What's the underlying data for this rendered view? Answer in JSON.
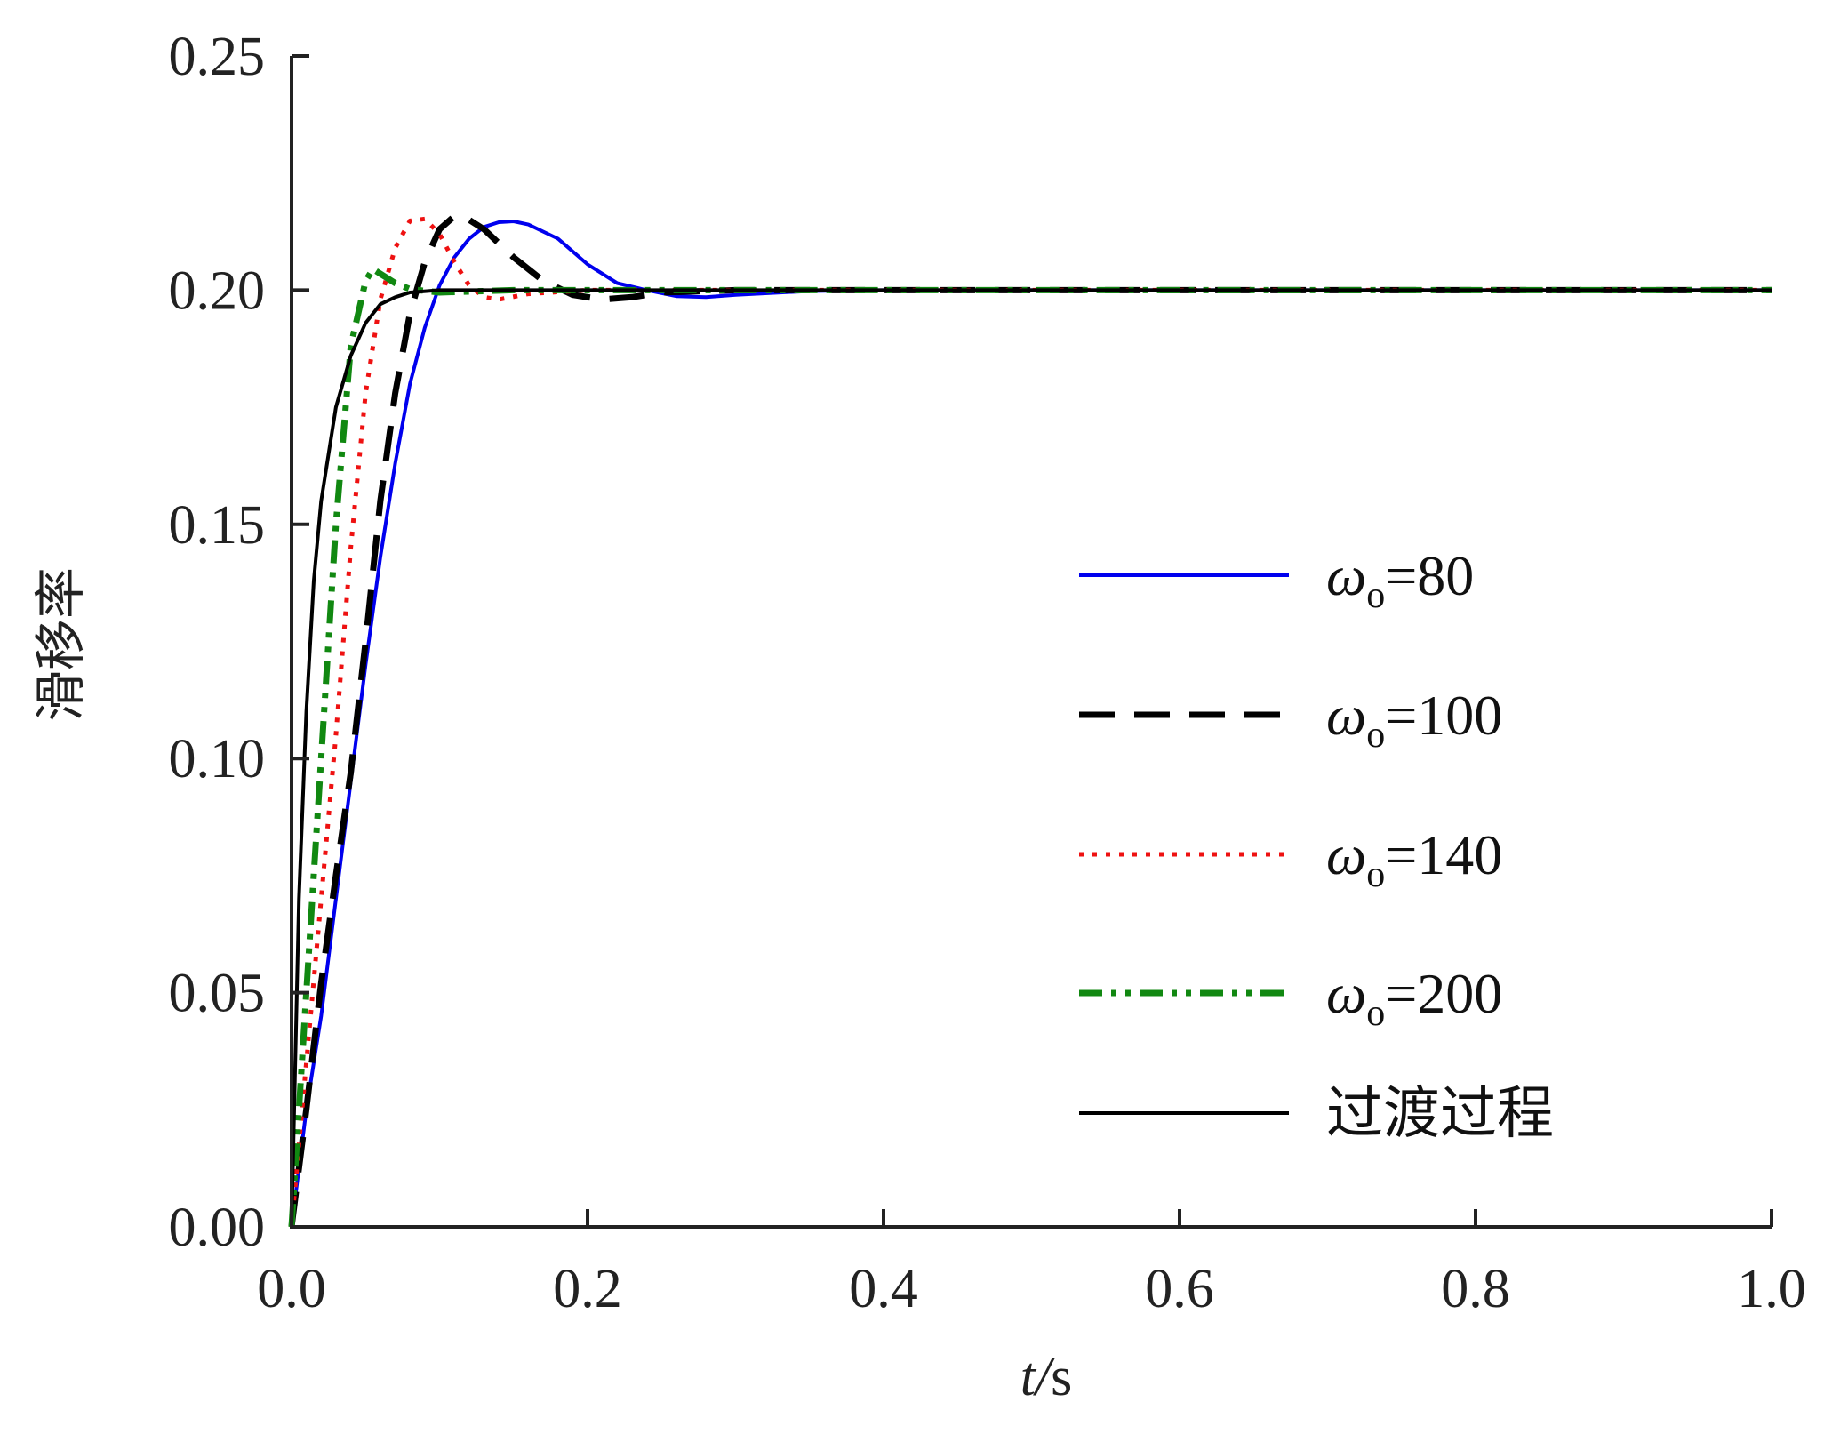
{
  "chart_data": {
    "type": "line",
    "title": "",
    "xlabel": "t/s",
    "ylabel": "滑移率",
    "xlim": [
      0,
      1.0
    ],
    "ylim": [
      0,
      0.25
    ],
    "xticks": [
      "0.0",
      "0.2",
      "0.4",
      "0.6",
      "0.8",
      "1.0"
    ],
    "yticks": [
      "0.00",
      "0.05",
      "0.10",
      "0.15",
      "0.20",
      "0.25"
    ],
    "grid": false,
    "legend_placement": "center-right",
    "series": [
      {
        "name": "ωo=80",
        "color": "#0000ee",
        "style": "solid",
        "points": [
          [
            0,
            0
          ],
          [
            0.01,
            0.025
          ],
          [
            0.02,
            0.045
          ],
          [
            0.03,
            0.07
          ],
          [
            0.04,
            0.095
          ],
          [
            0.05,
            0.12
          ],
          [
            0.06,
            0.143
          ],
          [
            0.07,
            0.163
          ],
          [
            0.08,
            0.18
          ],
          [
            0.09,
            0.192
          ],
          [
            0.1,
            0.201
          ],
          [
            0.11,
            0.207
          ],
          [
            0.12,
            0.211
          ],
          [
            0.13,
            0.2135
          ],
          [
            0.14,
            0.2145
          ],
          [
            0.15,
            0.2147
          ],
          [
            0.16,
            0.214
          ],
          [
            0.18,
            0.211
          ],
          [
            0.2,
            0.2055
          ],
          [
            0.22,
            0.2015
          ],
          [
            0.24,
            0.2
          ],
          [
            0.26,
            0.1987
          ],
          [
            0.28,
            0.1985
          ],
          [
            0.3,
            0.199
          ],
          [
            0.35,
            0.1998
          ],
          [
            0.4,
            0.2
          ],
          [
            1.0,
            0.2
          ]
        ]
      },
      {
        "name": "ωo=100",
        "color": "#000000",
        "style": "dashed",
        "points": [
          [
            0,
            0
          ],
          [
            0.01,
            0.025
          ],
          [
            0.02,
            0.052
          ],
          [
            0.03,
            0.075
          ],
          [
            0.04,
            0.097
          ],
          [
            0.05,
            0.125
          ],
          [
            0.06,
            0.155
          ],
          [
            0.07,
            0.178
          ],
          [
            0.08,
            0.195
          ],
          [
            0.09,
            0.206
          ],
          [
            0.1,
            0.213
          ],
          [
            0.11,
            0.2158
          ],
          [
            0.115,
            0.216
          ],
          [
            0.13,
            0.213
          ],
          [
            0.15,
            0.207
          ],
          [
            0.17,
            0.202
          ],
          [
            0.19,
            0.199
          ],
          [
            0.21,
            0.198
          ],
          [
            0.23,
            0.1985
          ],
          [
            0.25,
            0.1995
          ],
          [
            0.3,
            0.2
          ],
          [
            1.0,
            0.2
          ]
        ]
      },
      {
        "name": "ωo=140",
        "color": "#ee1111",
        "style": "dotted",
        "points": [
          [
            0,
            0
          ],
          [
            0.01,
            0.035
          ],
          [
            0.02,
            0.07
          ],
          [
            0.03,
            0.105
          ],
          [
            0.04,
            0.145
          ],
          [
            0.05,
            0.178
          ],
          [
            0.06,
            0.198
          ],
          [
            0.07,
            0.209
          ],
          [
            0.08,
            0.2148
          ],
          [
            0.09,
            0.2152
          ],
          [
            0.1,
            0.212
          ],
          [
            0.11,
            0.206
          ],
          [
            0.12,
            0.201
          ],
          [
            0.13,
            0.1985
          ],
          [
            0.14,
            0.198
          ],
          [
            0.16,
            0.1992
          ],
          [
            0.2,
            0.2
          ],
          [
            1.0,
            0.2
          ]
        ]
      },
      {
        "name": "ωo=200",
        "color": "#118811",
        "style": "dash-dot-dot",
        "points": [
          [
            0,
            0
          ],
          [
            0.01,
            0.05
          ],
          [
            0.02,
            0.1
          ],
          [
            0.03,
            0.15
          ],
          [
            0.04,
            0.188
          ],
          [
            0.05,
            0.202
          ],
          [
            0.055,
            0.2045
          ],
          [
            0.06,
            0.2035
          ],
          [
            0.07,
            0.2015
          ],
          [
            0.08,
            0.2002
          ],
          [
            0.1,
            0.1995
          ],
          [
            0.15,
            0.2
          ],
          [
            1.0,
            0.2
          ]
        ]
      },
      {
        "name": "过渡过程",
        "color": "#000000",
        "style": "solid",
        "points": [
          [
            0,
            0
          ],
          [
            0.005,
            0.07
          ],
          [
            0.01,
            0.11
          ],
          [
            0.015,
            0.138
          ],
          [
            0.02,
            0.155
          ],
          [
            0.03,
            0.175
          ],
          [
            0.04,
            0.186
          ],
          [
            0.05,
            0.193
          ],
          [
            0.06,
            0.197
          ],
          [
            0.07,
            0.1985
          ],
          [
            0.08,
            0.1995
          ],
          [
            0.1,
            0.2
          ],
          [
            1.0,
            0.2
          ]
        ]
      }
    ]
  }
}
